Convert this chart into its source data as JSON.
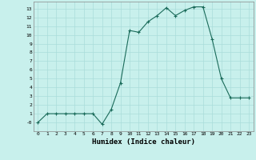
{
  "x": [
    0,
    1,
    2,
    3,
    4,
    5,
    6,
    7,
    8,
    9,
    10,
    11,
    12,
    13,
    14,
    15,
    16,
    17,
    18,
    19,
    20,
    21,
    22,
    23
  ],
  "y": [
    0,
    1,
    1,
    1,
    1,
    1,
    1,
    -0.2,
    1.5,
    4.5,
    10.5,
    10.3,
    11.5,
    12.2,
    13.1,
    12.2,
    12.8,
    13.2,
    13.2,
    9.5,
    5.0,
    2.8,
    2.8,
    2.8
  ],
  "line_color": "#1a6b5a",
  "marker": "+",
  "marker_size": 3,
  "bg_color": "#c8f0ec",
  "grid_color": "#aaddda",
  "xlabel": "Humidex (Indice chaleur)",
  "xlim": [
    -0.5,
    23.5
  ],
  "ylim": [
    -1,
    13.8
  ],
  "yticks": [
    0,
    1,
    2,
    3,
    4,
    5,
    6,
    7,
    8,
    9,
    10,
    11,
    12,
    13
  ],
  "ytick_labels": [
    "-0",
    "1",
    "2",
    "3",
    "4",
    "5",
    "6",
    "7",
    "8",
    "9",
    "10",
    "11",
    "12",
    "13"
  ],
  "xticks": [
    0,
    1,
    2,
    3,
    4,
    5,
    6,
    7,
    8,
    9,
    10,
    11,
    12,
    13,
    14,
    15,
    16,
    17,
    18,
    19,
    20,
    21,
    22,
    23
  ]
}
